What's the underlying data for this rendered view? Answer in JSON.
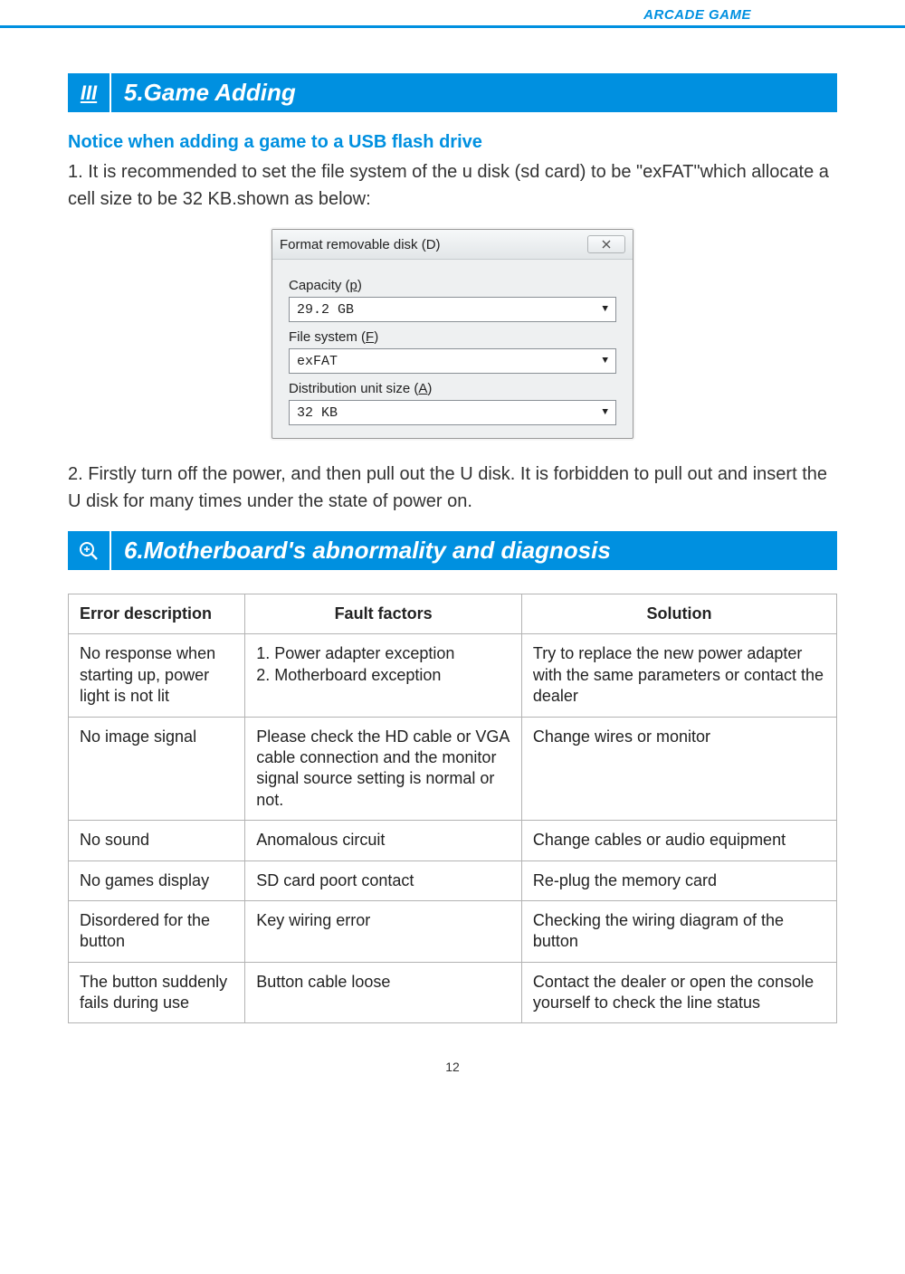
{
  "header": {
    "label": "ARCADE GAME"
  },
  "section5": {
    "marker": "III",
    "title": "5.Game Adding",
    "subheading": "Notice when adding a game to a USB flash drive",
    "para1": "1. It is recommended to set the file system of the u disk (sd card) to be \"exFAT\"which allocate a cell size to be 32 KB.shown as below:",
    "para2": "2. Firstly turn off the power, and then pull out the U disk. It is forbidden to pull out and insert the U disk for many times under the state of power on."
  },
  "dialog": {
    "title": "Format removable disk (D)",
    "capacity_label": "Capacity (p)",
    "capacity_value": "29.2 GB",
    "filesystem_label": "File system (F)",
    "filesystem_value": "exFAT",
    "unitsize_label": "Distribution unit size (A)",
    "unitsize_value": "32 KB"
  },
  "section6": {
    "title": "6.Motherboard's abnormality and diagnosis"
  },
  "table": {
    "headers": [
      "Error description",
      "Fault factors",
      "Solution"
    ],
    "rows": [
      [
        "No response when starting up, power light is not lit",
        "1. Power adapter exception\n2.  Motherboard exception",
        "Try to replace the new power adapter with the same parameters or contact the dealer"
      ],
      [
        "No image signal",
        "Please check the HD cable or VGA cable connection and the monitor signal source setting is normal or not.",
        "Change wires or monitor"
      ],
      [
        "No sound",
        "Anomalous circuit",
        "Change cables or audio equipment"
      ],
      [
        "No games display",
        "SD card poort contact",
        "Re-plug the memory card"
      ],
      [
        "Disordered for the button",
        "Key wiring error",
        "Checking the wiring diagram of the button"
      ],
      [
        "The button suddenly fails during use",
        "Button cable loose",
        "Contact the dealer or open the console yourself to check the line status"
      ]
    ]
  },
  "page_number": "12",
  "colors": {
    "brand_blue": "#0090e0",
    "border_gray": "#b3b3b3",
    "text": "#333333"
  }
}
